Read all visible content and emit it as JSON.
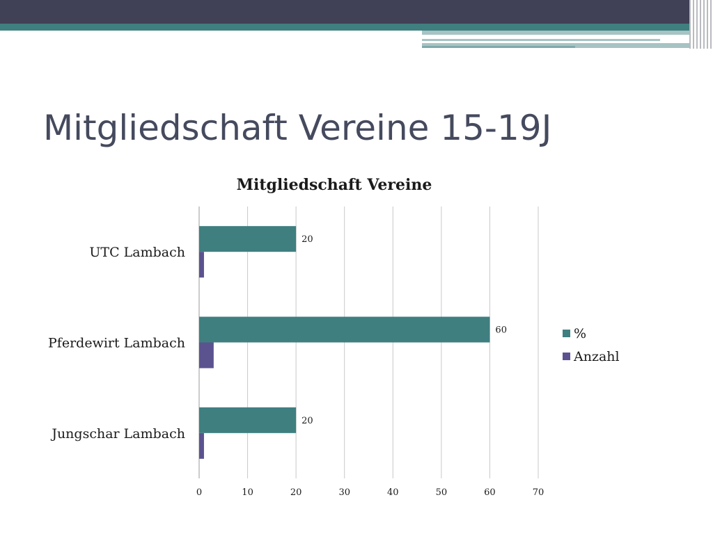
{
  "slide": {
    "title": "Mitgliedschaft Vereine 15-19J",
    "colors": {
      "header_bar": "#404057",
      "header_accent": "#3f7f80",
      "header_light": "#a7c3c4",
      "text": "#454a5e"
    }
  },
  "chart_data": {
    "type": "bar",
    "orientation": "horizontal",
    "title": "Mitgliedschaft Vereine",
    "categories": [
      "UTC Lambach",
      "Pferdewirt Lambach",
      "Jungschar Lambach"
    ],
    "series": [
      {
        "name": "%",
        "values": [
          20,
          60,
          20
        ],
        "color": "#3f7f80",
        "data_labels": [
          "20",
          "60",
          "20"
        ]
      },
      {
        "name": "Anzahl",
        "values": [
          1,
          3,
          1
        ],
        "color": "#5b5390"
      }
    ],
    "xlim": [
      0,
      70
    ],
    "xticks": [
      0,
      10,
      20,
      30,
      40,
      50,
      60,
      70
    ],
    "grid": true,
    "legend_position": "right"
  }
}
